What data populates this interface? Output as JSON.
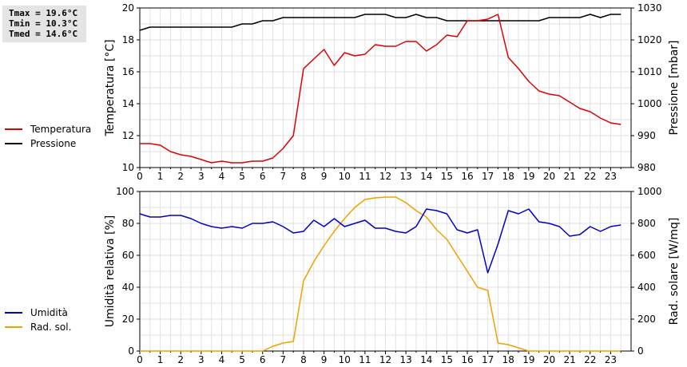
{
  "stats": {
    "tmax": "Tmax = 19.6°C",
    "tmin": "Tmin = 10.3°C",
    "tmed": "Tmed = 14.6°C"
  },
  "colors": {
    "temperature": "#e00000",
    "pressure": "#000000",
    "humidity": "#0000cc",
    "radiation": "#f0a000"
  },
  "chart_data": [
    {
      "type": "line",
      "ylabel": "Temperatura [°C]",
      "y2label": "Pressione [mbar]",
      "xticks": [
        "0",
        "1",
        "2",
        "3",
        "4",
        "5",
        "6",
        "7",
        "8",
        "9",
        "10",
        "11",
        "12",
        "13",
        "14",
        "15",
        "16",
        "17",
        "18",
        "19",
        "20",
        "21",
        "22",
        "23"
      ],
      "ylim": [
        10,
        20
      ],
      "yticks": [
        "10",
        "12",
        "14",
        "16",
        "18",
        "20"
      ],
      "y2lim": [
        980,
        1030
      ],
      "y2ticks": [
        "980",
        "990",
        "1000",
        "1010",
        "1020",
        "1030"
      ],
      "grid": true,
      "series": [
        {
          "name": "Temperatura",
          "axis": "left",
          "x": [
            0,
            0.5,
            1,
            1.5,
            2,
            2.5,
            3,
            3.5,
            4,
            4.5,
            5,
            5.5,
            6,
            6.5,
            7,
            7.5,
            8,
            8.5,
            9,
            9.5,
            10,
            10.5,
            11,
            11.5,
            12,
            12.5,
            13,
            13.5,
            14,
            14.5,
            15,
            15.5,
            16,
            16.5,
            17,
            17.5,
            18,
            18.5,
            19,
            19.5,
            20,
            20.5,
            21,
            21.5,
            22,
            22.5,
            23,
            23.5
          ],
          "values": [
            11.5,
            11.5,
            11.4,
            11.0,
            10.8,
            10.7,
            10.5,
            10.3,
            10.4,
            10.3,
            10.3,
            10.4,
            10.4,
            10.6,
            11.2,
            12.0,
            16.2,
            16.8,
            17.4,
            16.4,
            17.2,
            17.0,
            17.1,
            17.7,
            17.6,
            17.6,
            17.9,
            17.9,
            17.3,
            17.7,
            18.3,
            18.2,
            19.2,
            19.2,
            19.3,
            19.6,
            16.9,
            16.2,
            15.4,
            14.8,
            14.6,
            14.5,
            14.1,
            13.7,
            13.5,
            13.1,
            12.8,
            12.7
          ]
        },
        {
          "name": "Pressione",
          "axis": "right",
          "x": [
            0,
            0.5,
            1,
            1.5,
            2,
            2.5,
            3,
            3.5,
            4,
            4.5,
            5,
            5.5,
            6,
            6.5,
            7,
            7.5,
            8,
            8.5,
            9,
            9.5,
            10,
            10.5,
            11,
            11.5,
            12,
            12.5,
            13,
            13.5,
            14,
            14.5,
            15,
            15.5,
            16,
            16.5,
            17,
            17.5,
            18,
            18.5,
            19,
            19.5,
            20,
            20.5,
            21,
            21.5,
            22,
            22.5,
            23,
            23.5
          ],
          "values": [
            1023,
            1024,
            1024,
            1024,
            1024,
            1024,
            1024,
            1024,
            1024,
            1024,
            1025,
            1025,
            1026,
            1026,
            1027,
            1027,
            1027,
            1027,
            1027,
            1027,
            1027,
            1027,
            1028,
            1028,
            1028,
            1027,
            1027,
            1028,
            1027,
            1027,
            1026,
            1026,
            1026,
            1026,
            1026,
            1026,
            1026,
            1026,
            1026,
            1026,
            1027,
            1027,
            1027,
            1027,
            1028,
            1027,
            1028,
            1028
          ]
        }
      ]
    },
    {
      "type": "line",
      "ylabel": "Umidità relativa [%]",
      "y2label": "Rad. solare [W/mq]",
      "xticks": [
        "0",
        "1",
        "2",
        "3",
        "4",
        "5",
        "6",
        "7",
        "8",
        "9",
        "10",
        "11",
        "12",
        "13",
        "14",
        "15",
        "16",
        "17",
        "18",
        "19",
        "20",
        "21",
        "22",
        "23"
      ],
      "ylim": [
        0,
        100
      ],
      "yticks": [
        "0",
        "20",
        "40",
        "60",
        "80",
        "100"
      ],
      "y2lim": [
        0,
        1000
      ],
      "y2ticks": [
        "0",
        "200",
        "400",
        "600",
        "800",
        "1000"
      ],
      "grid": true,
      "series": [
        {
          "name": "Umidità",
          "axis": "left",
          "x": [
            0,
            0.5,
            1,
            1.5,
            2,
            2.5,
            3,
            3.5,
            4,
            4.5,
            5,
            5.5,
            6,
            6.5,
            7,
            7.5,
            8,
            8.5,
            9,
            9.5,
            10,
            10.5,
            11,
            11.5,
            12,
            12.5,
            13,
            13.5,
            14,
            14.5,
            15,
            15.5,
            16,
            16.5,
            17,
            17.5,
            18,
            18.5,
            19,
            19.5,
            20,
            20.5,
            21,
            21.5,
            22,
            22.5,
            23,
            23.5
          ],
          "values": [
            86,
            84,
            84,
            85,
            85,
            83,
            80,
            78,
            77,
            78,
            77,
            80,
            80,
            81,
            78,
            74,
            75,
            82,
            78,
            83,
            78,
            80,
            82,
            77,
            77,
            75,
            74,
            78,
            89,
            88,
            86,
            76,
            74,
            76,
            49,
            67,
            88,
            86,
            89,
            81,
            80,
            78,
            72,
            73,
            78,
            75,
            78,
            79
          ]
        },
        {
          "name": "Rad. sol.",
          "axis": "right",
          "x": [
            0,
            0.5,
            1,
            1.5,
            2,
            2.5,
            3,
            3.5,
            4,
            4.5,
            5,
            5.5,
            6,
            6.5,
            7,
            7.5,
            8,
            8.5,
            9,
            9.5,
            10,
            10.5,
            11,
            11.5,
            12,
            12.5,
            13,
            13.5,
            14,
            14.5,
            15,
            15.5,
            16,
            16.5,
            17,
            17.5,
            18,
            18.5,
            19,
            19.5,
            20,
            20.5,
            21,
            21.5,
            22,
            22.5,
            23,
            23.5
          ],
          "values": [
            0,
            0,
            0,
            0,
            0,
            0,
            0,
            0,
            0,
            0,
            0,
            0,
            0,
            30,
            50,
            60,
            440,
            560,
            660,
            750,
            830,
            900,
            950,
            960,
            965,
            965,
            930,
            880,
            840,
            760,
            700,
            600,
            500,
            400,
            380,
            50,
            40,
            20,
            0,
            0,
            0,
            0,
            0,
            0,
            0,
            0,
            0,
            0
          ]
        }
      ]
    }
  ]
}
